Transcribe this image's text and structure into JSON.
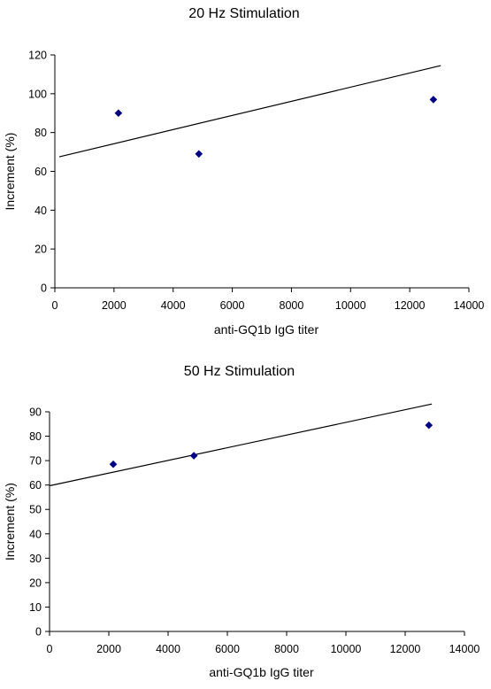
{
  "chart_data": [
    {
      "type": "scatter",
      "title": "20 Hz Stimulation",
      "xlabel": "anti-GQ1b IgG titer",
      "ylabel": "Increment (%)",
      "xlim": [
        0,
        14000
      ],
      "ylim": [
        0,
        120
      ],
      "xticks": [
        0,
        2000,
        4000,
        6000,
        8000,
        10000,
        12000,
        14000
      ],
      "yticks": [
        0,
        20,
        40,
        60,
        80,
        100,
        120
      ],
      "grid": false,
      "legend": "none",
      "marker": "diamond",
      "marker_color": "#000080",
      "series": [
        {
          "x": [
            2150,
            4870,
            12800
          ],
          "y": [
            90,
            69,
            97
          ]
        }
      ],
      "trendline": {
        "x": [
          150,
          13050
        ],
        "y": [
          67.5,
          114.5
        ]
      }
    },
    {
      "type": "scatter",
      "title": "50 Hz Stimulation",
      "xlabel": "anti-GQ1b IgG titer",
      "ylabel": "Increment (%)",
      "xlim": [
        0,
        14000
      ],
      "ylim": [
        0,
        90
      ],
      "xticks": [
        0,
        2000,
        4000,
        6000,
        8000,
        10000,
        12000,
        14000
      ],
      "yticks": [
        0,
        10,
        20,
        30,
        40,
        50,
        60,
        70,
        80,
        90
      ],
      "grid": false,
      "legend": "none",
      "marker": "diamond",
      "marker_color": "#000080",
      "series": [
        {
          "x": [
            2150,
            4870,
            12800
          ],
          "y": [
            68.5,
            72,
            84.5
          ]
        }
      ],
      "trendline": {
        "x": [
          0,
          12900
        ],
        "y": [
          59.7,
          93.2
        ]
      }
    }
  ]
}
